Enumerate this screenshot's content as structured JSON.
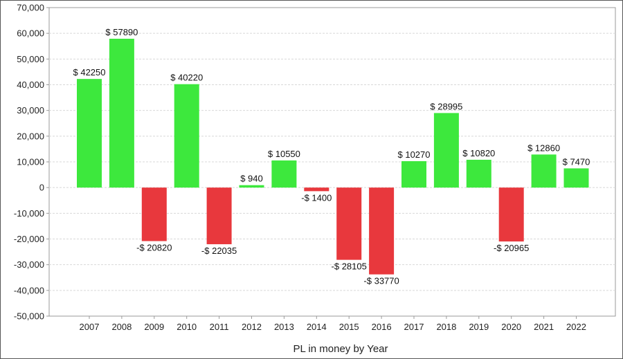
{
  "chart_data": {
    "type": "bar",
    "title": "",
    "xlabel": "PL in money by Year",
    "ylabel": "",
    "ylim": [
      -50000,
      70000
    ],
    "y_ticks": [
      70000,
      60000,
      50000,
      40000,
      30000,
      20000,
      10000,
      0,
      -10000,
      -20000,
      -30000,
      -40000,
      -50000
    ],
    "y_tick_labels": [
      "70,000",
      "60,000",
      "50,000",
      "40,000",
      "30,000",
      "20,000",
      "10,000",
      "0",
      "-10,000",
      "-20,000",
      "-30,000",
      "-40,000",
      "-50,000"
    ],
    "grid": true,
    "categories": [
      "2007",
      "2008",
      "2009",
      "2010",
      "2011",
      "2012",
      "2013",
      "2014",
      "2015",
      "2016",
      "2017",
      "2018",
      "2019",
      "2020",
      "2021",
      "2022"
    ],
    "values": [
      42250,
      57890,
      -20820,
      40220,
      -22035,
      940,
      10550,
      -1400,
      -28105,
      -33770,
      10270,
      28995,
      10820,
      -20965,
      12860,
      7470
    ],
    "data_labels": [
      "$ 42250",
      "$ 57890",
      "-$ 20820",
      "$ 40220",
      "-$ 22035",
      "$ 940",
      "$ 10550",
      "-$ 1400",
      "-$ 28105",
      "-$ 33770",
      "$ 10270",
      "$ 28995",
      "$ 10820",
      "-$ 20965",
      "$ 12860",
      "$ 7470"
    ],
    "colors": {
      "positive": "#3de83d",
      "negative": "#e8383d",
      "grid": "#d8d8d8",
      "axis": "#999999"
    }
  }
}
